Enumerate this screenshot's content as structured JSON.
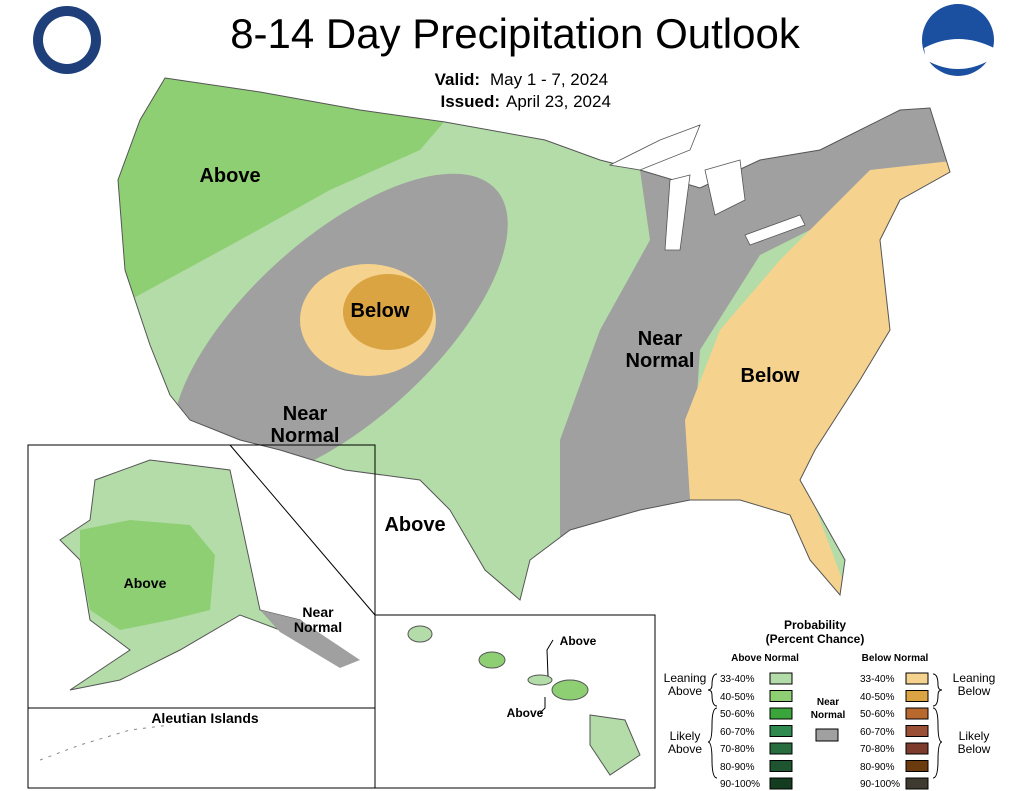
{
  "header": {
    "title": "8-14 Day Precipitation Outlook",
    "valid_label": "Valid:",
    "valid": "May 1 - 7, 2024",
    "issued_label": "Issued:",
    "issued": "April 23, 2024"
  },
  "conus_labels": [
    "Above",
    "Below",
    "Near Normal",
    "Near Normal",
    "Below",
    "Above"
  ],
  "alaska_labels": [
    "Above",
    "Near Normal"
  ],
  "aleutian_title": "Aleutian Islands",
  "hawaii_labels": [
    "Above",
    "Above"
  ],
  "legend": {
    "title": "Probability",
    "subtitle": "(Percent Chance)",
    "above_heading": "Above Normal",
    "below_heading": "Below Normal",
    "near_label": "Near Normal",
    "near_color": "#a0a0a0",
    "leaning_above": "Leaning Above",
    "likely_above": "Likely Above",
    "leaning_below": "Leaning Below",
    "likely_below": "Likely Below",
    "above": [
      {
        "label": "33-40%",
        "color": "#b3dca8"
      },
      {
        "label": "40-50%",
        "color": "#8fcf74"
      },
      {
        "label": "50-60%",
        "color": "#3aa53a"
      },
      {
        "label": "60-70%",
        "color": "#2e8a4e"
      },
      {
        "label": "70-80%",
        "color": "#276d3d"
      },
      {
        "label": "80-90%",
        "color": "#1e5530"
      },
      {
        "label": "90-100%",
        "color": "#133c20"
      }
    ],
    "below": [
      {
        "label": "33-40%",
        "color": "#f5d28e"
      },
      {
        "label": "40-50%",
        "color": "#d9a441"
      },
      {
        "label": "50-60%",
        "color": "#b8692e"
      },
      {
        "label": "60-70%",
        "color": "#9a5035"
      },
      {
        "label": "70-80%",
        "color": "#7d3b2c"
      },
      {
        "label": "80-90%",
        "color": "#6b3a0f"
      },
      {
        "label": "90-100%",
        "color": "#3f3a30"
      }
    ]
  }
}
